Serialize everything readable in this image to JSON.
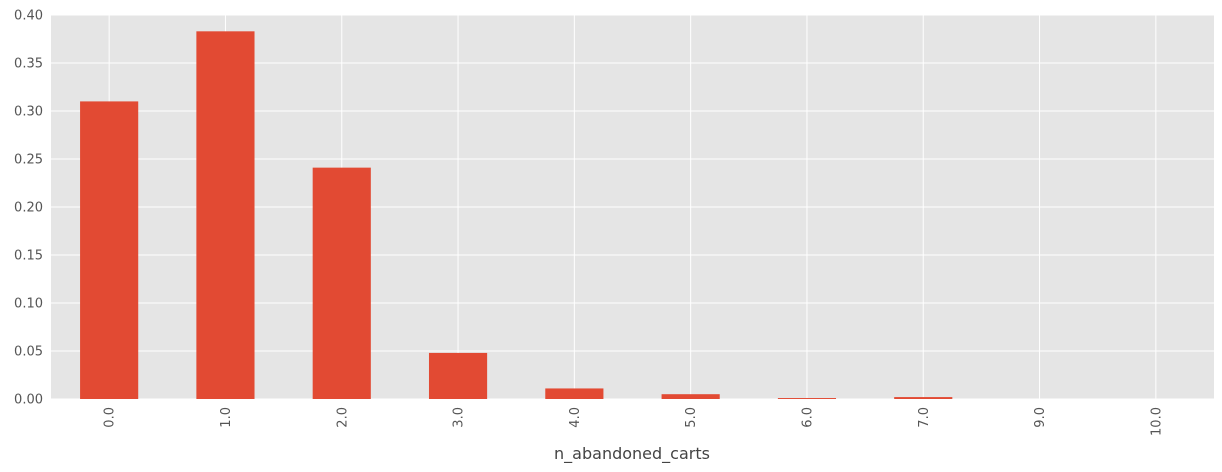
{
  "chart_data": {
    "type": "bar",
    "title": "",
    "xlabel": "n_abandoned_carts",
    "ylabel": "",
    "categories": [
      "0.0",
      "1.0",
      "2.0",
      "3.0",
      "4.0",
      "5.0",
      "6.0",
      "7.0",
      "9.0",
      "10.0"
    ],
    "values": [
      0.31,
      0.383,
      0.241,
      0.048,
      0.011,
      0.005,
      0.001,
      0.002,
      0.0,
      0.0
    ],
    "ylim": [
      0,
      0.4
    ],
    "yticks": [
      "0.00",
      "0.05",
      "0.10",
      "0.15",
      "0.20",
      "0.25",
      "0.30",
      "0.35",
      "0.40"
    ],
    "grid": true,
    "legend": "none",
    "bar_color": "#E24A33",
    "background_color": "#E5E5E5",
    "grid_color": "#FFFFFF"
  }
}
